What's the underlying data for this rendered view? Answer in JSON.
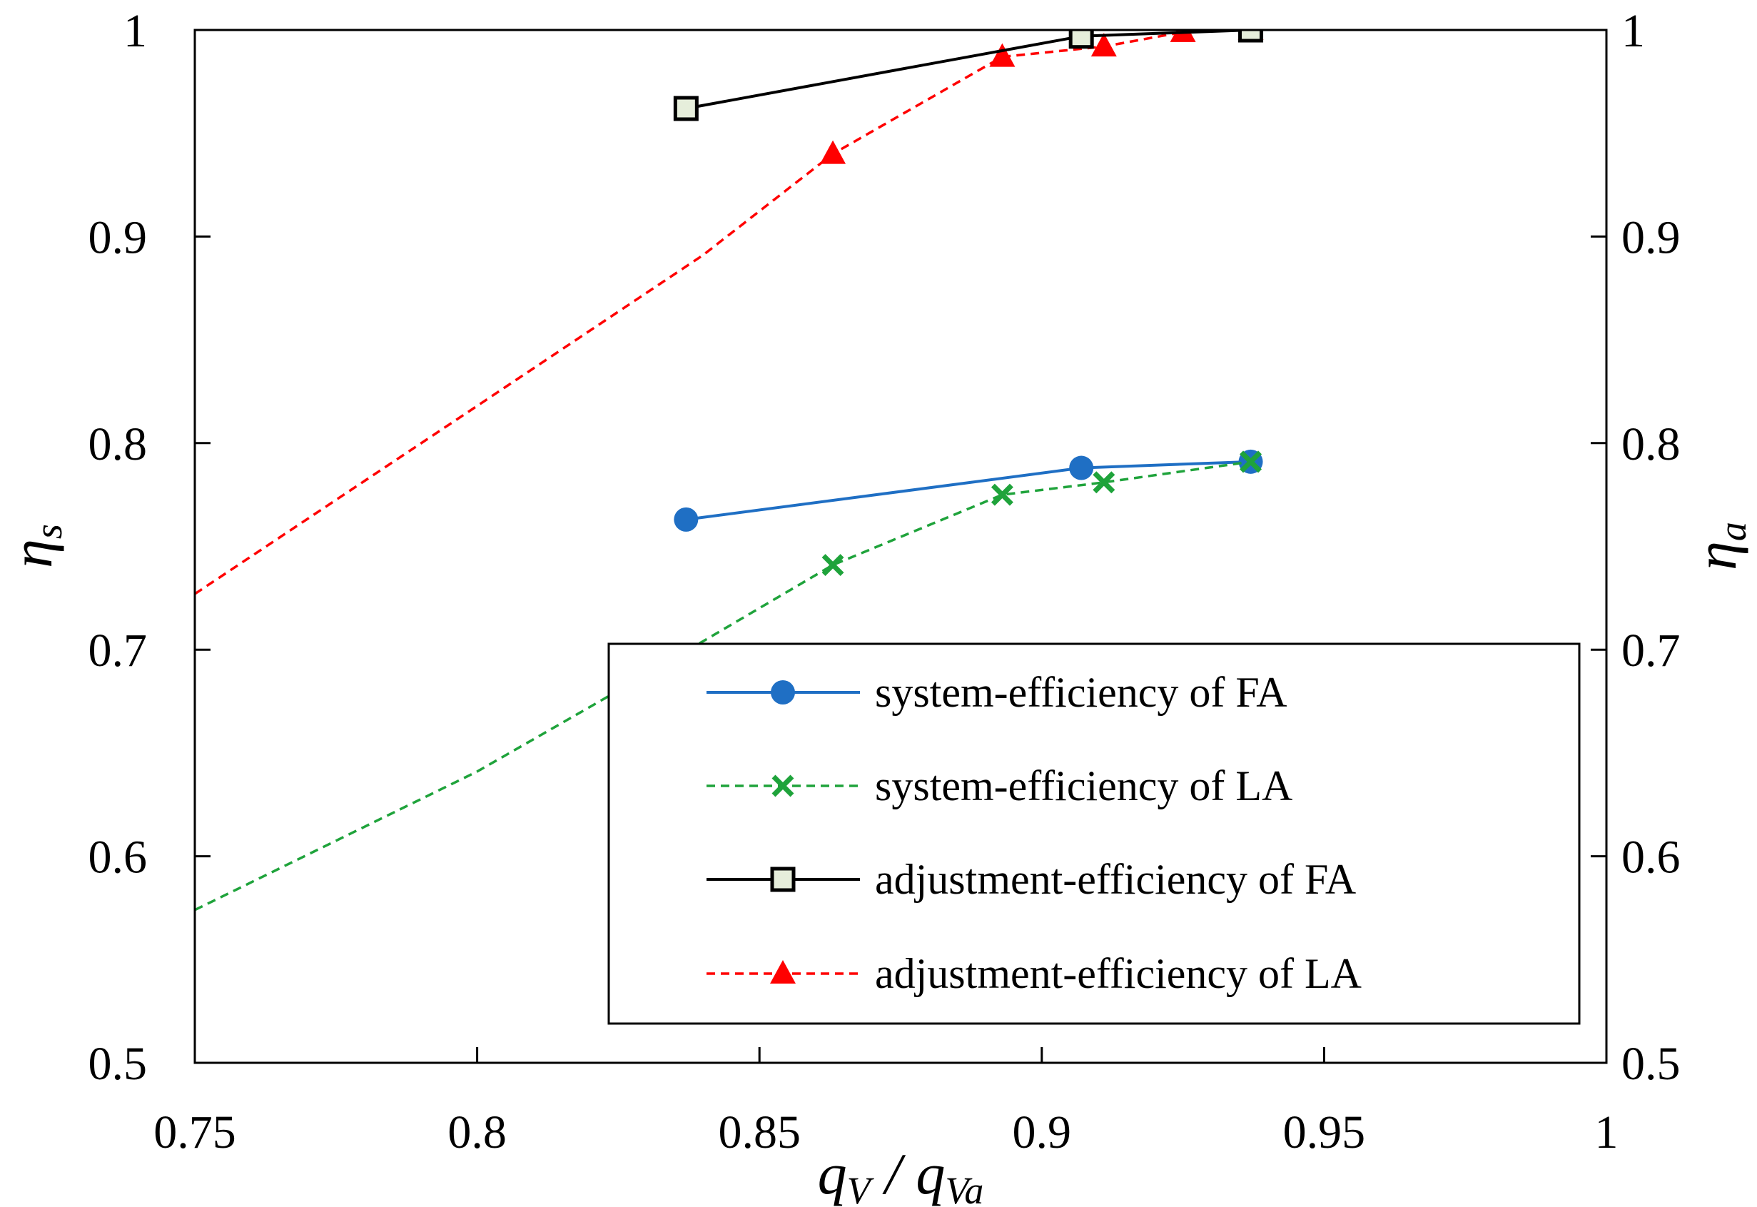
{
  "chart_data": {
    "type": "line",
    "title": "",
    "xlabel": {
      "main": "q",
      "sub1": "V",
      "sep": " / ",
      "main2": "q",
      "sub2": "Va"
    },
    "ylabel_left": {
      "main": "η",
      "sub": "s"
    },
    "ylabel_right": {
      "main": "η",
      "sub": "a"
    },
    "xlim": [
      0.75,
      1.0
    ],
    "ylim": [
      0.5,
      1.0
    ],
    "x_ticks": [
      0.75,
      0.8,
      0.85,
      0.9,
      0.95,
      1.0
    ],
    "x_tick_labels": [
      "0.75",
      "0.8",
      "0.85",
      "0.9",
      "0.95",
      "1"
    ],
    "y_ticks": [
      0.5,
      0.6,
      0.7,
      0.8,
      0.9,
      1.0
    ],
    "y_tick_labels": [
      "0.5",
      "0.6",
      "0.7",
      "0.8",
      "0.9",
      "1"
    ],
    "grid": false,
    "legend_position": "bottom-right",
    "series": [
      {
        "name": "system-efficiency of FA",
        "color": "#1f6fc4",
        "line_style": "solid",
        "marker": "circle",
        "points": [
          [
            0.837,
            0.763
          ],
          [
            0.907,
            0.788
          ],
          [
            0.937,
            0.791
          ]
        ]
      },
      {
        "name": "system-efficiency of LA",
        "color": "#1fa33b",
        "line_style": "dashed",
        "marker": "x",
        "line_points": [
          [
            0.75,
            0.574
          ],
          [
            0.8,
            0.641
          ],
          [
            0.83,
            0.688
          ],
          [
            0.863,
            0.741
          ],
          [
            0.893,
            0.775
          ],
          [
            0.911,
            0.781
          ],
          [
            0.937,
            0.791
          ]
        ],
        "points": [
          [
            0.863,
            0.741
          ],
          [
            0.893,
            0.775
          ],
          [
            0.911,
            0.781
          ],
          [
            0.937,
            0.791
          ]
        ]
      },
      {
        "name": "adjustment-efficiency of FA",
        "color": "#000000",
        "marker_fill": "#e6eedb",
        "line_style": "solid",
        "marker": "square",
        "points": [
          [
            0.837,
            0.962
          ],
          [
            0.907,
            0.997
          ],
          [
            0.937,
            1.0
          ]
        ]
      },
      {
        "name": "adjustment-efficiency of LA",
        "color": "#ff0000",
        "line_style": "dashed",
        "marker": "triangle",
        "line_points": [
          [
            0.75,
            0.727
          ],
          [
            0.8,
            0.818
          ],
          [
            0.84,
            0.891
          ],
          [
            0.863,
            0.94
          ],
          [
            0.893,
            0.987
          ],
          [
            0.911,
            0.992
          ],
          [
            0.925,
            0.999
          ],
          [
            0.937,
            1.0
          ]
        ],
        "points": [
          [
            0.863,
            0.94
          ],
          [
            0.893,
            0.987
          ],
          [
            0.911,
            0.992
          ],
          [
            0.925,
            0.999
          ],
          [
            0.937,
            1.0
          ]
        ]
      }
    ]
  }
}
